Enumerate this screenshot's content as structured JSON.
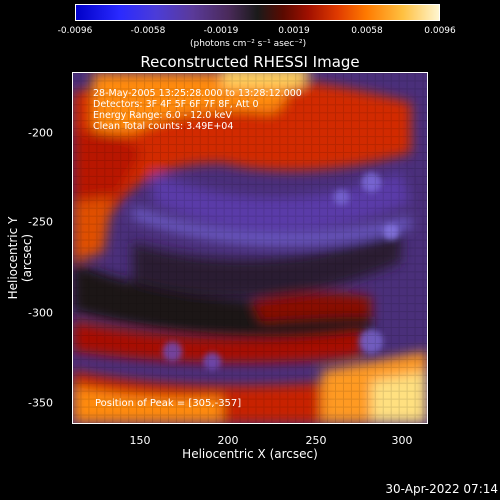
{
  "colorbar": {
    "ticks": [
      "-0.0096",
      "-0.0058",
      "-0.0019",
      "0.0019",
      "0.0058",
      "0.0096"
    ],
    "unit": "(photons cm⁻² s⁻¹ asec⁻²)"
  },
  "title": "Reconstructed RHESSI Image",
  "info": {
    "line1": "28-May-2005 13:25:28.000 to 13:28:12.000",
    "line2": "Detectors: 3F 4F 5F 6F 7F 8F, Att 0",
    "line3": "Energy Range: 6.0 - 12.0 keV",
    "line4": "Clean    Total counts: 3.49E+04"
  },
  "peak": "Position of Peak = [305,-357]",
  "axes": {
    "xlabel": "Heliocentric X (arcsec)",
    "ylabel": "Heliocentric Y (arcsec)",
    "xticks": [
      "150",
      "200",
      "250",
      "300"
    ],
    "yticks": [
      "-200",
      "-250",
      "-300",
      "-350"
    ]
  },
  "timestamp": "30-Apr-2022 07:14"
}
